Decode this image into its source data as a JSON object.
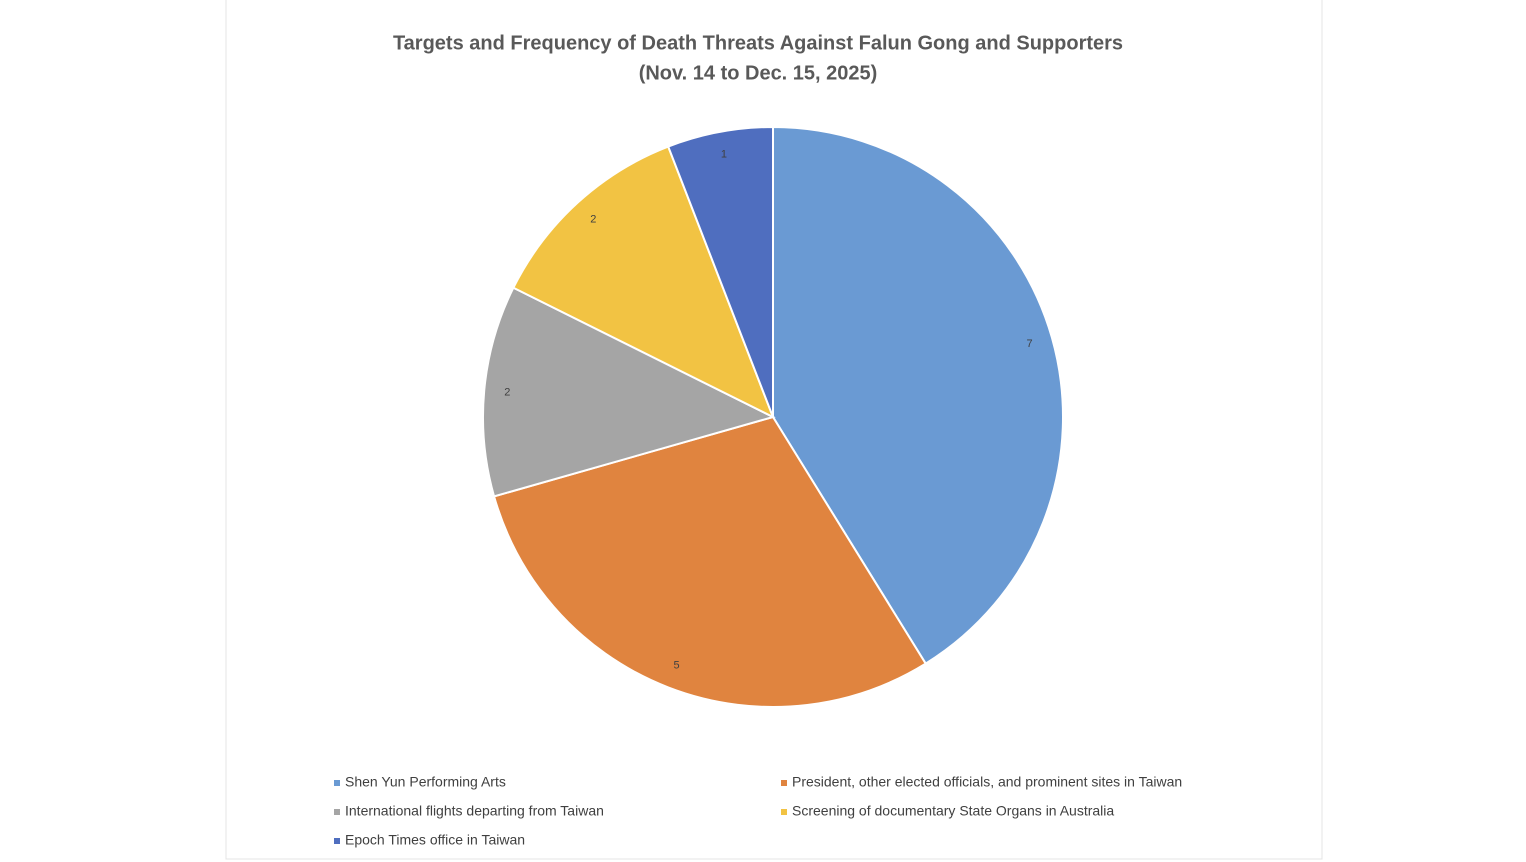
{
  "chart_data": {
    "type": "pie",
    "title": "Targets and Frequency of Death Threats Against Falun Gong and Supporters",
    "subtitle": "(Nov. 14 to Dec. 15, 2025)",
    "categories": [
      "Shen Yun Performing Arts",
      "President, other elected officials, and prominent sites in Taiwan",
      "International flights departing from Taiwan",
      "Screening of documentary State Organs in Australia",
      "Epoch Times office in Taiwan"
    ],
    "values": [
      7,
      5,
      2,
      2,
      1
    ],
    "colors": [
      "#6a9ad3",
      "#e0843f",
      "#a5a5a5",
      "#f2c343",
      "#4f6ebf"
    ],
    "legend": "bottom"
  }
}
